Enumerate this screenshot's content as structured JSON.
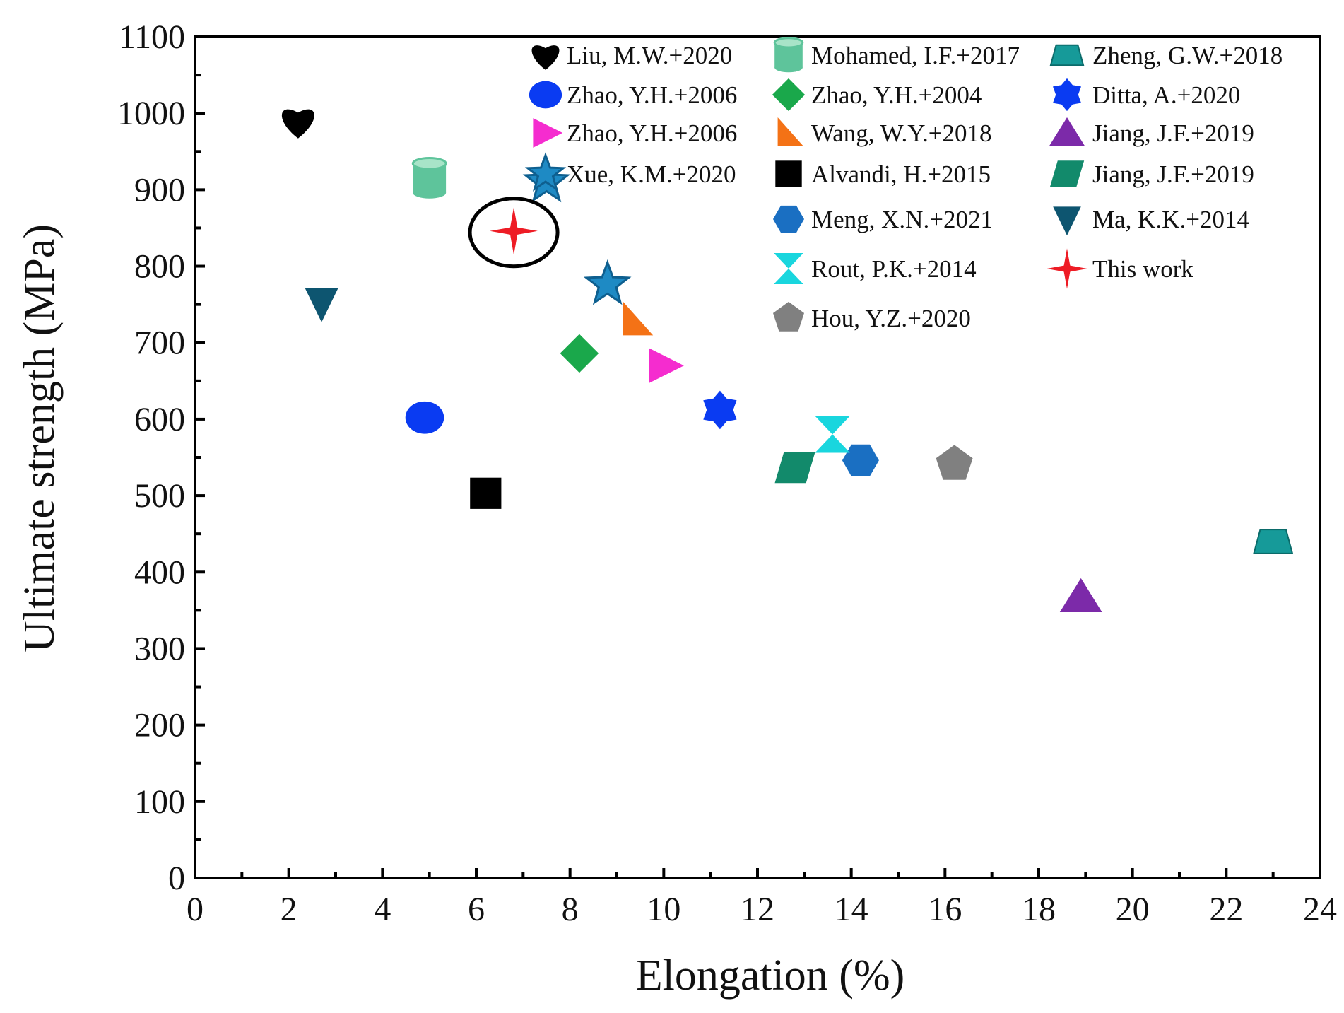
{
  "chart_data": {
    "type": "scatter",
    "xlabel": "Elongation (%)",
    "ylabel": "Ultimate strength (MPa)",
    "xlim": [
      0,
      24
    ],
    "ylim": [
      0,
      1100
    ],
    "xticks": [
      "0",
      "2",
      "4",
      "6",
      "8",
      "10",
      "12",
      "14",
      "16",
      "18",
      "20",
      "22",
      "24"
    ],
    "yticks": [
      "0",
      "100",
      "200",
      "300",
      "400",
      "500",
      "600",
      "700",
      "800",
      "900",
      "1000",
      "1100"
    ],
    "series": [
      {
        "name": "Liu, M.W.+2020",
        "marker": "heart",
        "color": "#000000",
        "x": 2.2,
        "y": 990
      },
      {
        "name": "Mohamed, I.F.+2017",
        "marker": "cylinder",
        "color": "#5ec49b",
        "x": 5.0,
        "y": 915
      },
      {
        "name": "Zheng, G.W.+2018",
        "marker": "trapezoid",
        "color": "#169a99",
        "x": 23.0,
        "y": 440
      },
      {
        "name": "Zhao, Y.H.+2006",
        "marker": "ellipse",
        "color": "#0a3bf2",
        "x": 4.9,
        "y": 602
      },
      {
        "name": "Zhao, Y.H.+2004",
        "marker": "diamond",
        "color": "#1aa84b",
        "x": 8.2,
        "y": 686
      },
      {
        "name": "Ditta, A.+2020",
        "marker": "star6",
        "color": "#0a3bf2",
        "x": 11.2,
        "y": 612
      },
      {
        "name": "Zhao, Y.H.+2006",
        "marker": "tri-right",
        "color": "#f52ccf",
        "x": 10.0,
        "y": 670
      },
      {
        "name": "Wang, W.Y.+2018",
        "marker": "wedge",
        "color": "#f47216",
        "x": 9.4,
        "y": 730
      },
      {
        "name": "Jiang, J.F.+2019",
        "marker": "tri-up",
        "color": "#7c2aa9",
        "x": 18.9,
        "y": 368
      },
      {
        "name": "Xue, K.M.+2020",
        "marker": "star5",
        "color": "#1e8ac4",
        "x": 7.5,
        "y": 910
      },
      {
        "name": "Xue, K.M.+2020",
        "marker": "star5",
        "color": "#1e8ac4",
        "x": 8.8,
        "y": 776,
        "legend": false
      },
      {
        "name": "Alvandi, H.+2015",
        "marker": "square",
        "color": "#000000",
        "x": 6.2,
        "y": 503
      },
      {
        "name": "Jiang, J.F.+2019",
        "marker": "parallelogram",
        "color": "#128a6b",
        "x": 12.8,
        "y": 537
      },
      {
        "name": "Meng, X.N.+2021",
        "marker": "hexagon",
        "color": "#1a6fc2",
        "x": 14.2,
        "y": 546
      },
      {
        "name": "Ma, K.K.+2014",
        "marker": "tri-down",
        "color": "#0d5570",
        "x": 2.7,
        "y": 752
      },
      {
        "name": "Rout, P.K.+2014",
        "marker": "hourglass",
        "color": "#19d6de",
        "x": 13.6,
        "y": 580
      },
      {
        "name": "This work",
        "marker": "star4",
        "color": "#ee1c25",
        "x": 6.8,
        "y": 846,
        "highlight": true
      },
      {
        "name": "Hou, Y.Z.+2020",
        "marker": "pentagon",
        "color": "#808080",
        "x": 16.2,
        "y": 541
      }
    ],
    "legend_placement": "top, three columns"
  }
}
